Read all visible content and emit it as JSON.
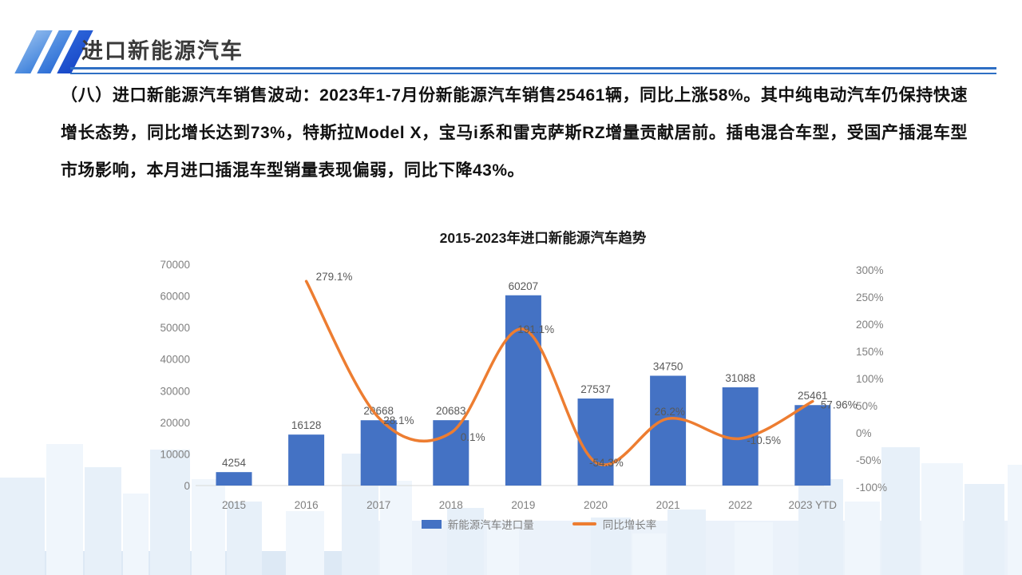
{
  "header": {
    "title": "进口新能源汽车"
  },
  "paragraph": "（八）进口新能源汽车销售波动：2023年1-7月份新能源汽车销售25461辆，同比上涨58%。其中纯电动汽车仍保持快速增长态势，同比增长达到73%，特斯拉Model X，宝马i系和雷克萨斯RZ增量贡献居前。插电混合车型，受国产插混车型市场影响，本月进口插混车型销量表现偏弱，同比下降43%。",
  "chart_data": {
    "type": "bar",
    "combo": "bar+line",
    "title": "2015-2023年进口新能源汽车趋势",
    "categories": [
      "2015",
      "2016",
      "2017",
      "2018",
      "2019",
      "2020",
      "2021",
      "2022",
      "2023 YTD"
    ],
    "series": [
      {
        "name": "新能源汽车进口量",
        "chart": "bar",
        "axis": "left",
        "color": "#4472C4",
        "values": [
          4254,
          16128,
          20668,
          20683,
          60207,
          27537,
          34750,
          31088,
          25461
        ],
        "labels": [
          "4254",
          "16128",
          "20668",
          "20683",
          "60207",
          "27537",
          "34750",
          "31088",
          "25461"
        ]
      },
      {
        "name": "同比增长率",
        "chart": "line",
        "axis": "right",
        "color": "#ED7D31",
        "values": [
          null,
          279.1,
          28.1,
          0.1,
          191.1,
          -54.3,
          26.2,
          -10.5,
          57.96
        ],
        "labels": [
          null,
          "279.1%",
          "28.1%",
          "0.1%",
          "191.1%",
          "-54.3%",
          "26.2%",
          "-10.5%",
          "57.96%"
        ]
      }
    ],
    "left_axis": {
      "min": 0,
      "max": 70000,
      "step": 10000,
      "tick_labels": [
        "0",
        "10000",
        "20000",
        "30000",
        "40000",
        "50000",
        "60000",
        "70000"
      ]
    },
    "right_axis": {
      "min": -100,
      "max": 300,
      "step": 50,
      "tick_labels": [
        "-100%",
        "-50%",
        "0%",
        "50%",
        "100%",
        "150%",
        "200%",
        "250%",
        "300%"
      ]
    },
    "legend": [
      {
        "label": "新能源汽车进口量",
        "color": "#4472C4",
        "type": "bar"
      },
      {
        "label": "同比增长率",
        "color": "#ED7D31",
        "type": "line"
      }
    ],
    "grid": "off",
    "legend_position": "bottom"
  },
  "colors": {
    "bar": "#4472C4",
    "line": "#ED7D31",
    "accent_rule": "#2E6FC4",
    "tick_label": "#808080",
    "data_label": "#595959",
    "axis_line": "#D9D9D9"
  }
}
